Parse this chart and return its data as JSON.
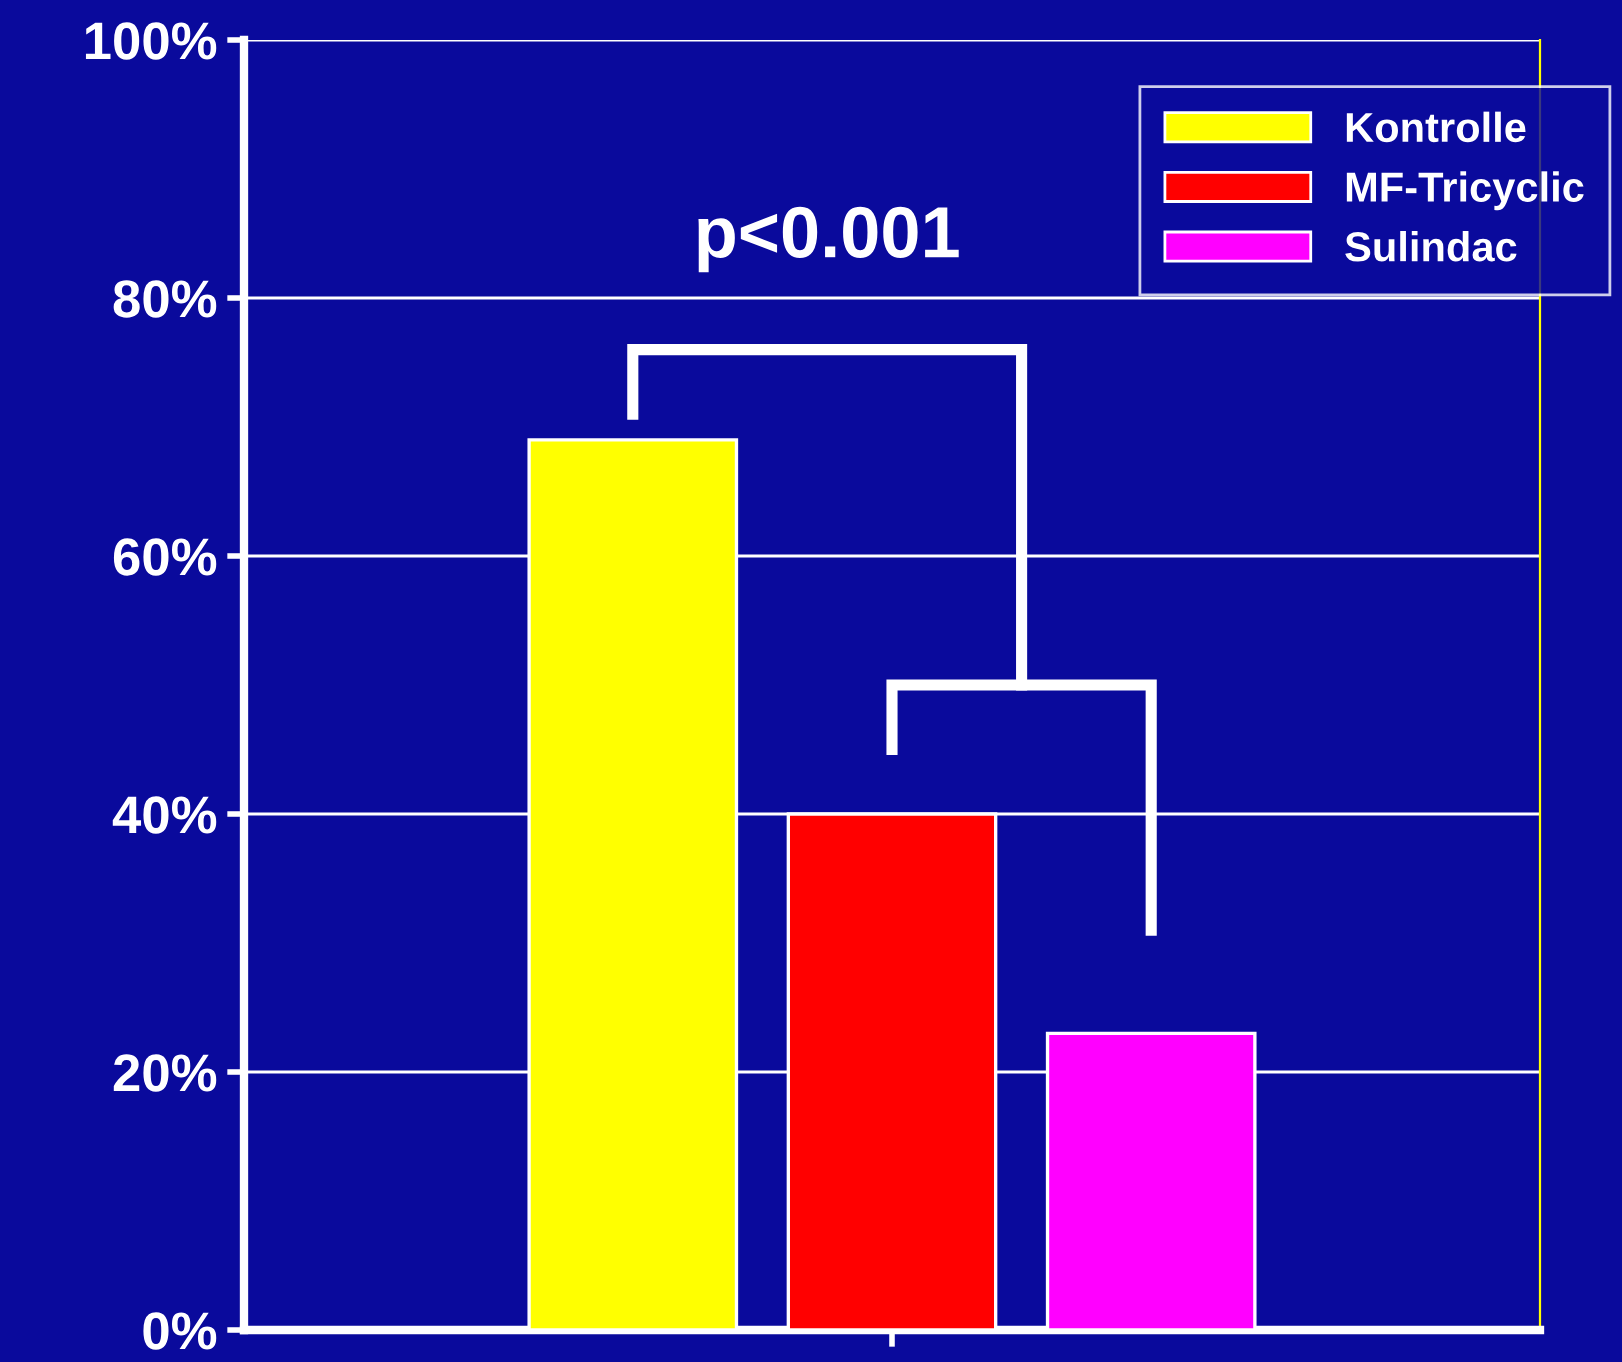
{
  "chart_data": {
    "type": "bar",
    "categories": [
      null
    ],
    "series": [
      {
        "name": "Kontrolle",
        "color": "#ffff00",
        "values": [
          69
        ]
      },
      {
        "name": "MF-Tricyclic",
        "color": "#ff0000",
        "values": [
          40
        ]
      },
      {
        "name": "Sulindac",
        "color": "#ff00ff",
        "values": [
          23
        ]
      }
    ],
    "ylim": [
      0,
      100
    ],
    "yticks": [
      {
        "value": 0,
        "label": "0%"
      },
      {
        "value": 20,
        "label": "20%"
      },
      {
        "value": 40,
        "label": "40%"
      },
      {
        "value": 60,
        "label": "60%"
      },
      {
        "value": 80,
        "label": "80%"
      },
      {
        "value": 100,
        "label": "100%"
      }
    ],
    "grid": "y",
    "legend": "top right",
    "annotations": [
      "p<0.001"
    ]
  }
}
